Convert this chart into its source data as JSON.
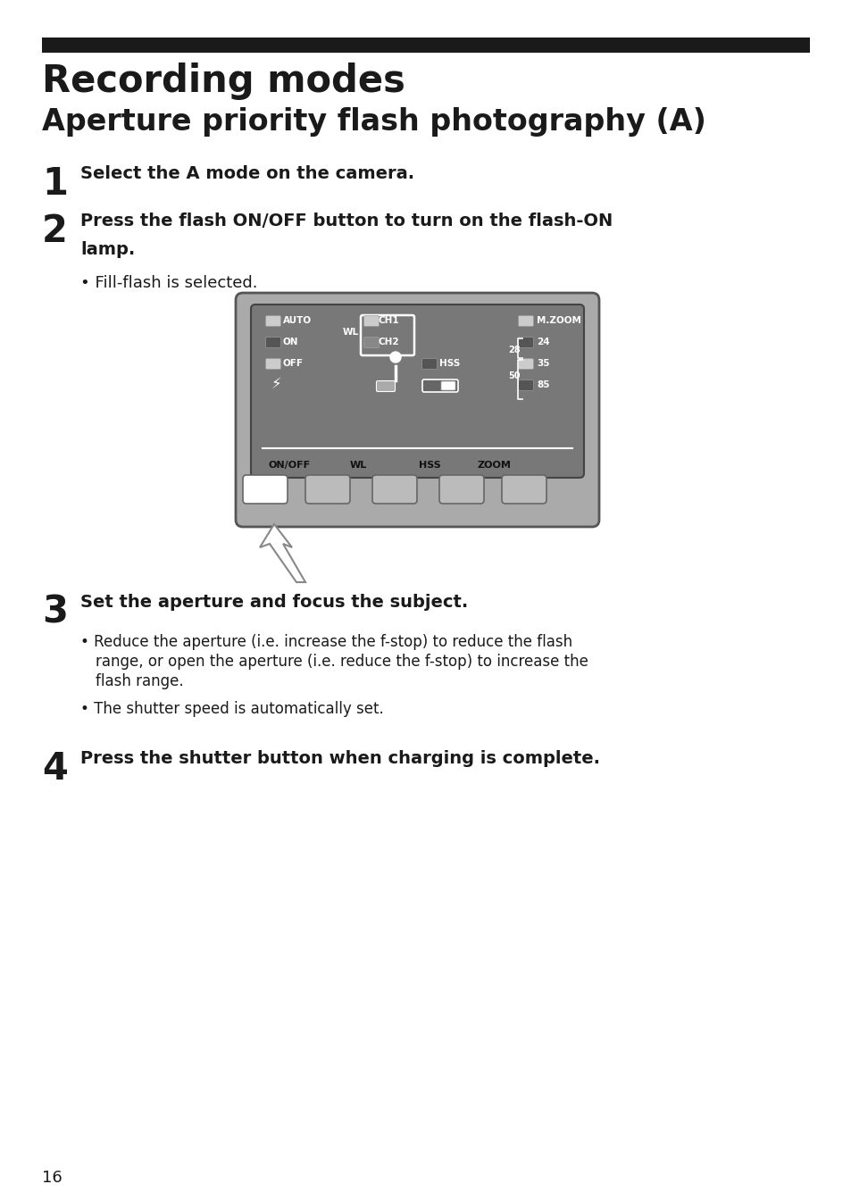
{
  "page_bg": "#ffffff",
  "top_bar_color": "#1a1a1a",
  "title1": "Recording modes",
  "title2": "Aperture priority flash photography (A)",
  "step1_num": "1",
  "step1_text": "Select the A mode on the camera.",
  "step2_num": "2",
  "step2_line1": "Press the flash ON/OFF button to turn on the flash-ON",
  "step2_line2": "lamp.",
  "step2_bullet": "Fill-flash is selected.",
  "step3_num": "3",
  "step3_text": "Set the aperture and focus the subject.",
  "step3_bullet1_line1": "Reduce the aperture (i.e. increase the f-stop) to reduce the flash",
  "step3_bullet1_line2": "range, or open the aperture (i.e. reduce the f-stop) to increase the",
  "step3_bullet1_line3": "flash range.",
  "step3_bullet2": "The shutter speed is automatically set.",
  "step4_num": "4",
  "step4_text": "Press the shutter button when charging is complete.",
  "page_number": "16"
}
